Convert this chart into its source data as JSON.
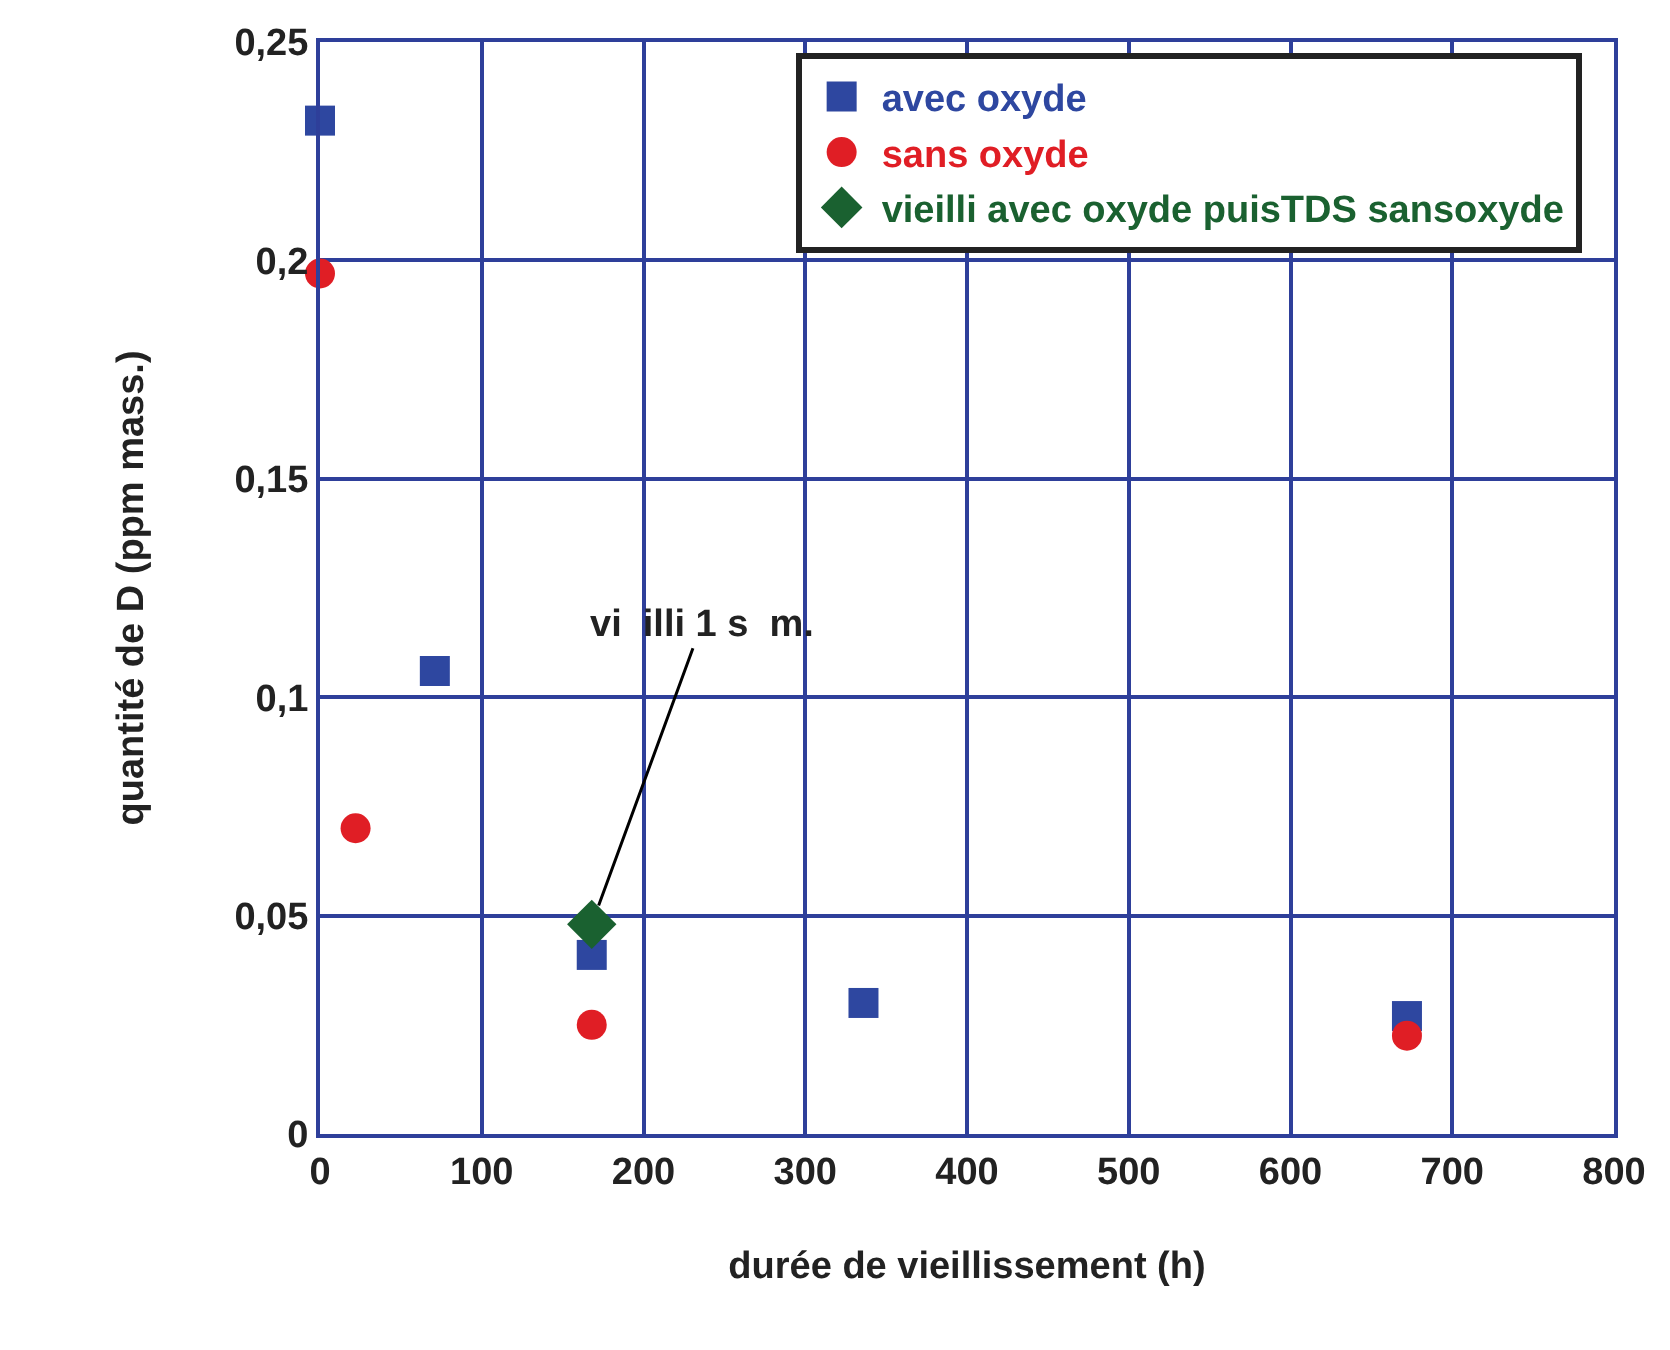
{
  "chart_data": {
    "type": "scatter",
    "xlabel": "durée de vieillissement (h)",
    "ylabel": "quantité de D (ppm mass.)",
    "series": [
      {
        "name": "avec oxyde",
        "color": "#2e47a0",
        "marker": "square",
        "x": [
          0,
          71,
          168,
          336,
          672
        ],
        "values": [
          0.232,
          0.106,
          0.041,
          0.03,
          0.027
        ]
      },
      {
        "name": "sans oxyde",
        "color": "#e01e25",
        "marker": "circle",
        "x": [
          0,
          22,
          168,
          672
        ],
        "values": [
          0.197,
          0.07,
          0.025,
          0.0225
        ]
      },
      {
        "name": "vieilli avec oxyde puisTDS sansoxyde",
        "color": "#1a6130",
        "marker": "diamond",
        "x": [
          168
        ],
        "values": [
          0.048
        ]
      }
    ],
    "annotations": [
      {
        "text": "vi  illi 1 s  m.",
        "x": 168,
        "y": 0.048
      }
    ],
    "xlim": [
      0,
      800
    ],
    "xticks": [
      0,
      100,
      200,
      300,
      400,
      500,
      600,
      700,
      800
    ],
    "ylim": [
      0,
      0.25
    ],
    "yticks": [
      {
        "value": 0,
        "label": "0"
      },
      {
        "value": 0.05,
        "label": "0,05"
      },
      {
        "value": 0.1,
        "label": "0,1"
      },
      {
        "value": 0.15,
        "label": "0,15"
      },
      {
        "value": 0.2,
        "label": "0,2"
      },
      {
        "value": 0.25,
        "label": "0,25"
      }
    ],
    "grid": true,
    "legend": "top right"
  }
}
